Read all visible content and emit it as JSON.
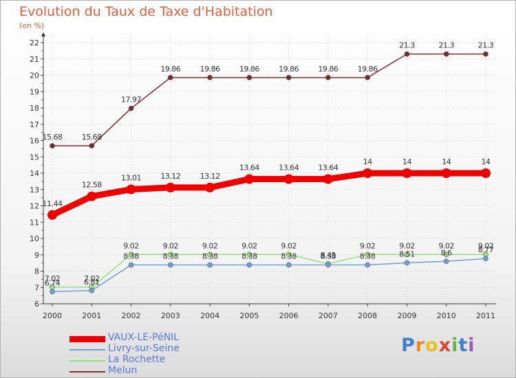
{
  "chart_data": {
    "type": "line",
    "title": "Evolution du Taux de Taxe d'Habitation",
    "subtitle": "(en %)",
    "x": [
      "2000",
      "2001",
      "2002",
      "2003",
      "2004",
      "2005",
      "2006",
      "2007",
      "2008",
      "2009",
      "2010",
      "2011"
    ],
    "yticks": [
      "6",
      "7",
      "8",
      "9",
      "10",
      "11",
      "12",
      "13",
      "14",
      "15",
      "16",
      "17",
      "18",
      "19",
      "20",
      "21",
      "22"
    ],
    "ylim": [
      6,
      22
    ],
    "series": [
      {
        "name": "Melun",
        "color": "#7b2c2c",
        "values": [
          15.68,
          15.68,
          17.97,
          19.86,
          19.86,
          19.86,
          19.86,
          19.86,
          19.86,
          21.3,
          21.3,
          21.3
        ],
        "labels": [
          "15.68",
          "15.68",
          "17.97",
          "19.86",
          "19.86",
          "19.86",
          "19.86",
          "19.86",
          "19.86",
          "21.3",
          "21.3",
          "21.3"
        ]
      },
      {
        "name": "VAUX-LE-PéNIL",
        "color": "#ee0000",
        "values": [
          11.44,
          12.58,
          13.01,
          13.12,
          13.12,
          13.64,
          13.64,
          13.64,
          14,
          14,
          14,
          14
        ],
        "labels": [
          "11.44",
          "12.58",
          "13.01",
          "13.12",
          "13.12",
          "13.64",
          "13.64",
          "13.64",
          "14",
          "14",
          "14",
          "14"
        ]
      },
      {
        "name": "La Rochette",
        "color": "#99e07a",
        "values": [
          7.02,
          7.02,
          9.02,
          9.02,
          9.02,
          9.02,
          9.02,
          8.45,
          9.02,
          9.02,
          9.02,
          9.02
        ],
        "labels": [
          "7.02",
          "7.02",
          "9.02",
          "9.02",
          "9.02",
          "9.02",
          "9.02",
          "8.45",
          "9.02",
          "9.02",
          "9.02",
          "9.02"
        ]
      },
      {
        "name": "Livry-sur-Seine",
        "color": "#6c9fd8",
        "values": [
          6.74,
          6.81,
          8.38,
          8.38,
          8.38,
          8.38,
          8.38,
          8.38,
          8.38,
          8.51,
          8.6,
          8.77
        ],
        "labels": [
          "6.74",
          "6.81",
          "8.38",
          "8.38",
          "8.38",
          "8.38",
          "8.38",
          "8.38",
          "8.38",
          "8.51",
          "8.6",
          "8.77"
        ]
      }
    ],
    "legend": [
      {
        "name": "VAUX-LE-PéNIL",
        "color": "#ee0000"
      },
      {
        "name": "Livry-sur-Seine",
        "color": "#6c9fd8"
      },
      {
        "name": "La Rochette",
        "color": "#99e07a"
      },
      {
        "name": "Melun",
        "color": "#7b2c2c"
      }
    ],
    "legend_position": "bottom-left"
  },
  "logo": {
    "p": "P",
    "r": "r",
    "o": "o",
    "x": "x",
    "i1": "i",
    "t": "t",
    "i2": "i"
  }
}
